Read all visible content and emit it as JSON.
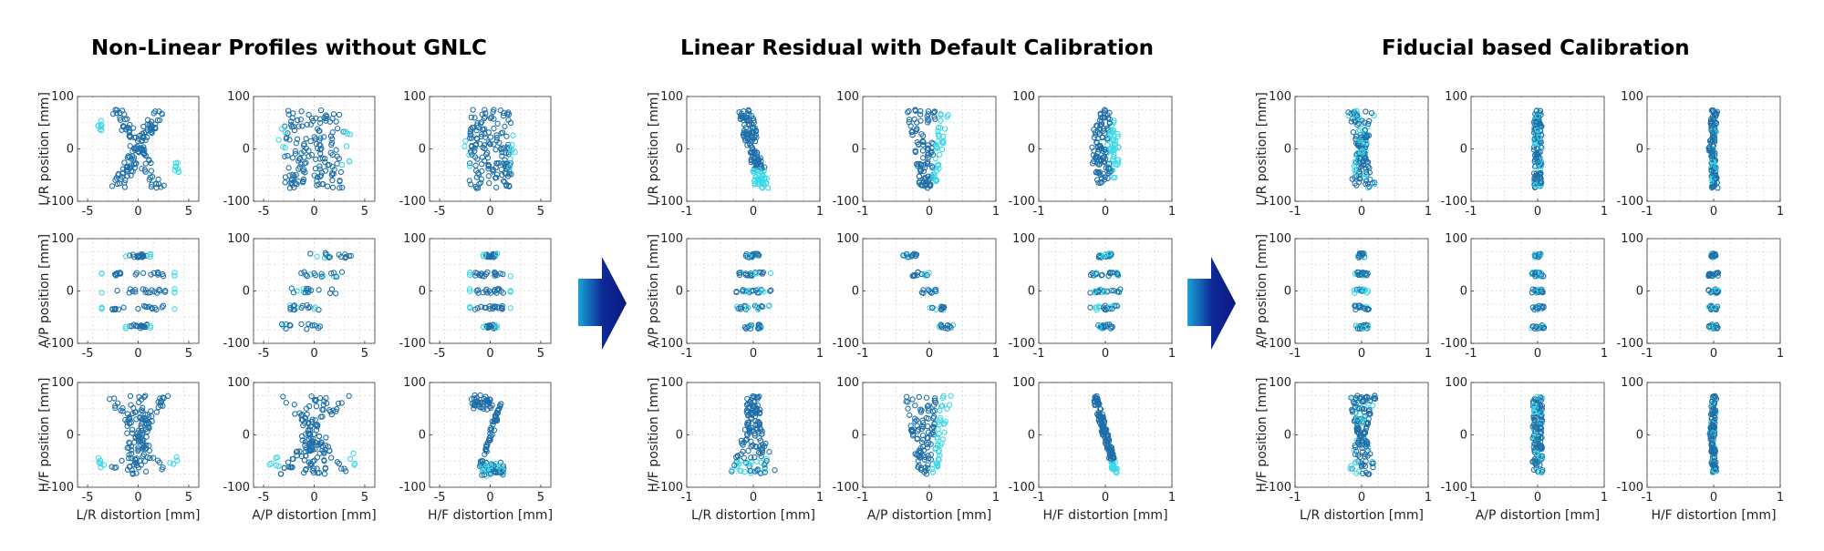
{
  "figure": {
    "titles": [
      "Non-Linear Profiles without GNLC",
      "Linear Residual with Default Calibration",
      "Fiducial based Calibration"
    ],
    "colors": {
      "dark": "#1f6fa8",
      "light": "#3dd8e6",
      "arrow_dark": "#0d1a80",
      "arrow_light": "#1aa3d6"
    }
  },
  "chart_data": [
    {
      "type": "scatter",
      "title": "Non-Linear Profiles without GNLC",
      "row_labels": [
        "L/R position [mm]",
        "A/P position [mm]",
        "H/F position [mm]"
      ],
      "col_labels": [
        "L/R distortion [mm]",
        "A/P distortion [mm]",
        "H/F distortion [mm]"
      ],
      "xlim": [
        -6,
        6
      ],
      "xticks": [
        -5,
        0,
        5
      ],
      "ylim": [
        -100,
        100
      ],
      "yticks": [
        -100,
        0,
        100
      ],
      "grid": true,
      "subplots": [
        [
          {
            "pattern": "lr_x",
            "xamp": 4.5
          },
          {
            "pattern": "blob",
            "xamp": 4.5
          },
          {
            "pattern": "blob",
            "xamp": 3.2
          }
        ],
        [
          {
            "pattern": "bands_wide",
            "xamp": 5.0
          },
          {
            "pattern": "bands_diag",
            "xamp": 5.0
          },
          {
            "pattern": "bands_wide",
            "xamp": 2.8
          }
        ],
        [
          {
            "pattern": "hf_x",
            "xamp": 4.5
          },
          {
            "pattern": "hf_x",
            "xamp": 5.0
          },
          {
            "pattern": "z_shape",
            "xamp": 3.0
          }
        ]
      ]
    },
    {
      "type": "scatter",
      "title": "Linear Residual with Default Calibration",
      "row_labels": [
        "L/R position [mm]",
        "A/P position [mm]",
        "H/F position [mm]"
      ],
      "col_labels": [
        "L/R distortion [mm]",
        "A/P distortion [mm]",
        "H/F distortion [mm]"
      ],
      "xlim": [
        -1,
        1
      ],
      "xticks": [
        -1,
        0,
        1
      ],
      "ylim": [
        -100,
        100
      ],
      "yticks": [
        -100,
        0,
        100
      ],
      "grid": true,
      "subplots": [
        [
          {
            "pattern": "diag",
            "xamp": 0.35
          },
          {
            "pattern": "fan",
            "xamp": 0.45
          },
          {
            "pattern": "egg",
            "xamp": 0.3
          }
        ],
        [
          {
            "pattern": "bands",
            "xamp": 0.35
          },
          {
            "pattern": "bands_diag_small",
            "xamp": 0.5
          },
          {
            "pattern": "bands",
            "xamp": 0.3
          }
        ],
        [
          {
            "pattern": "bell",
            "xamp": 0.4
          },
          {
            "pattern": "fan",
            "xamp": 0.5
          },
          {
            "pattern": "diag_narrow",
            "xamp": 0.35
          }
        ]
      ]
    },
    {
      "type": "scatter",
      "title": "Fiducial based Calibration",
      "row_labels": [
        "L/R position [mm]",
        "A/P position [mm]",
        "H/F position [mm]"
      ],
      "col_labels": [
        "L/R distortion [mm]",
        "A/P distortion [mm]",
        "H/F distortion [mm]"
      ],
      "xlim": [
        -1,
        1
      ],
      "xticks": [
        -1,
        0,
        1
      ],
      "ylim": [
        -100,
        100
      ],
      "yticks": [
        -100,
        0,
        100
      ],
      "grid": true,
      "subplots": [
        [
          {
            "pattern": "hourglass",
            "xamp": 0.28
          },
          {
            "pattern": "column",
            "xamp": 0.12
          },
          {
            "pattern": "column_curve",
            "xamp": 0.15
          }
        ],
        [
          {
            "pattern": "bands_narrow",
            "xamp": 0.18
          },
          {
            "pattern": "bands_narrow",
            "xamp": 0.15
          },
          {
            "pattern": "bands_narrow",
            "xamp": 0.12
          }
        ],
        [
          {
            "pattern": "hourglass",
            "xamp": 0.28
          },
          {
            "pattern": "column",
            "xamp": 0.15
          },
          {
            "pattern": "column_curve",
            "xamp": 0.12
          }
        ]
      ]
    }
  ]
}
